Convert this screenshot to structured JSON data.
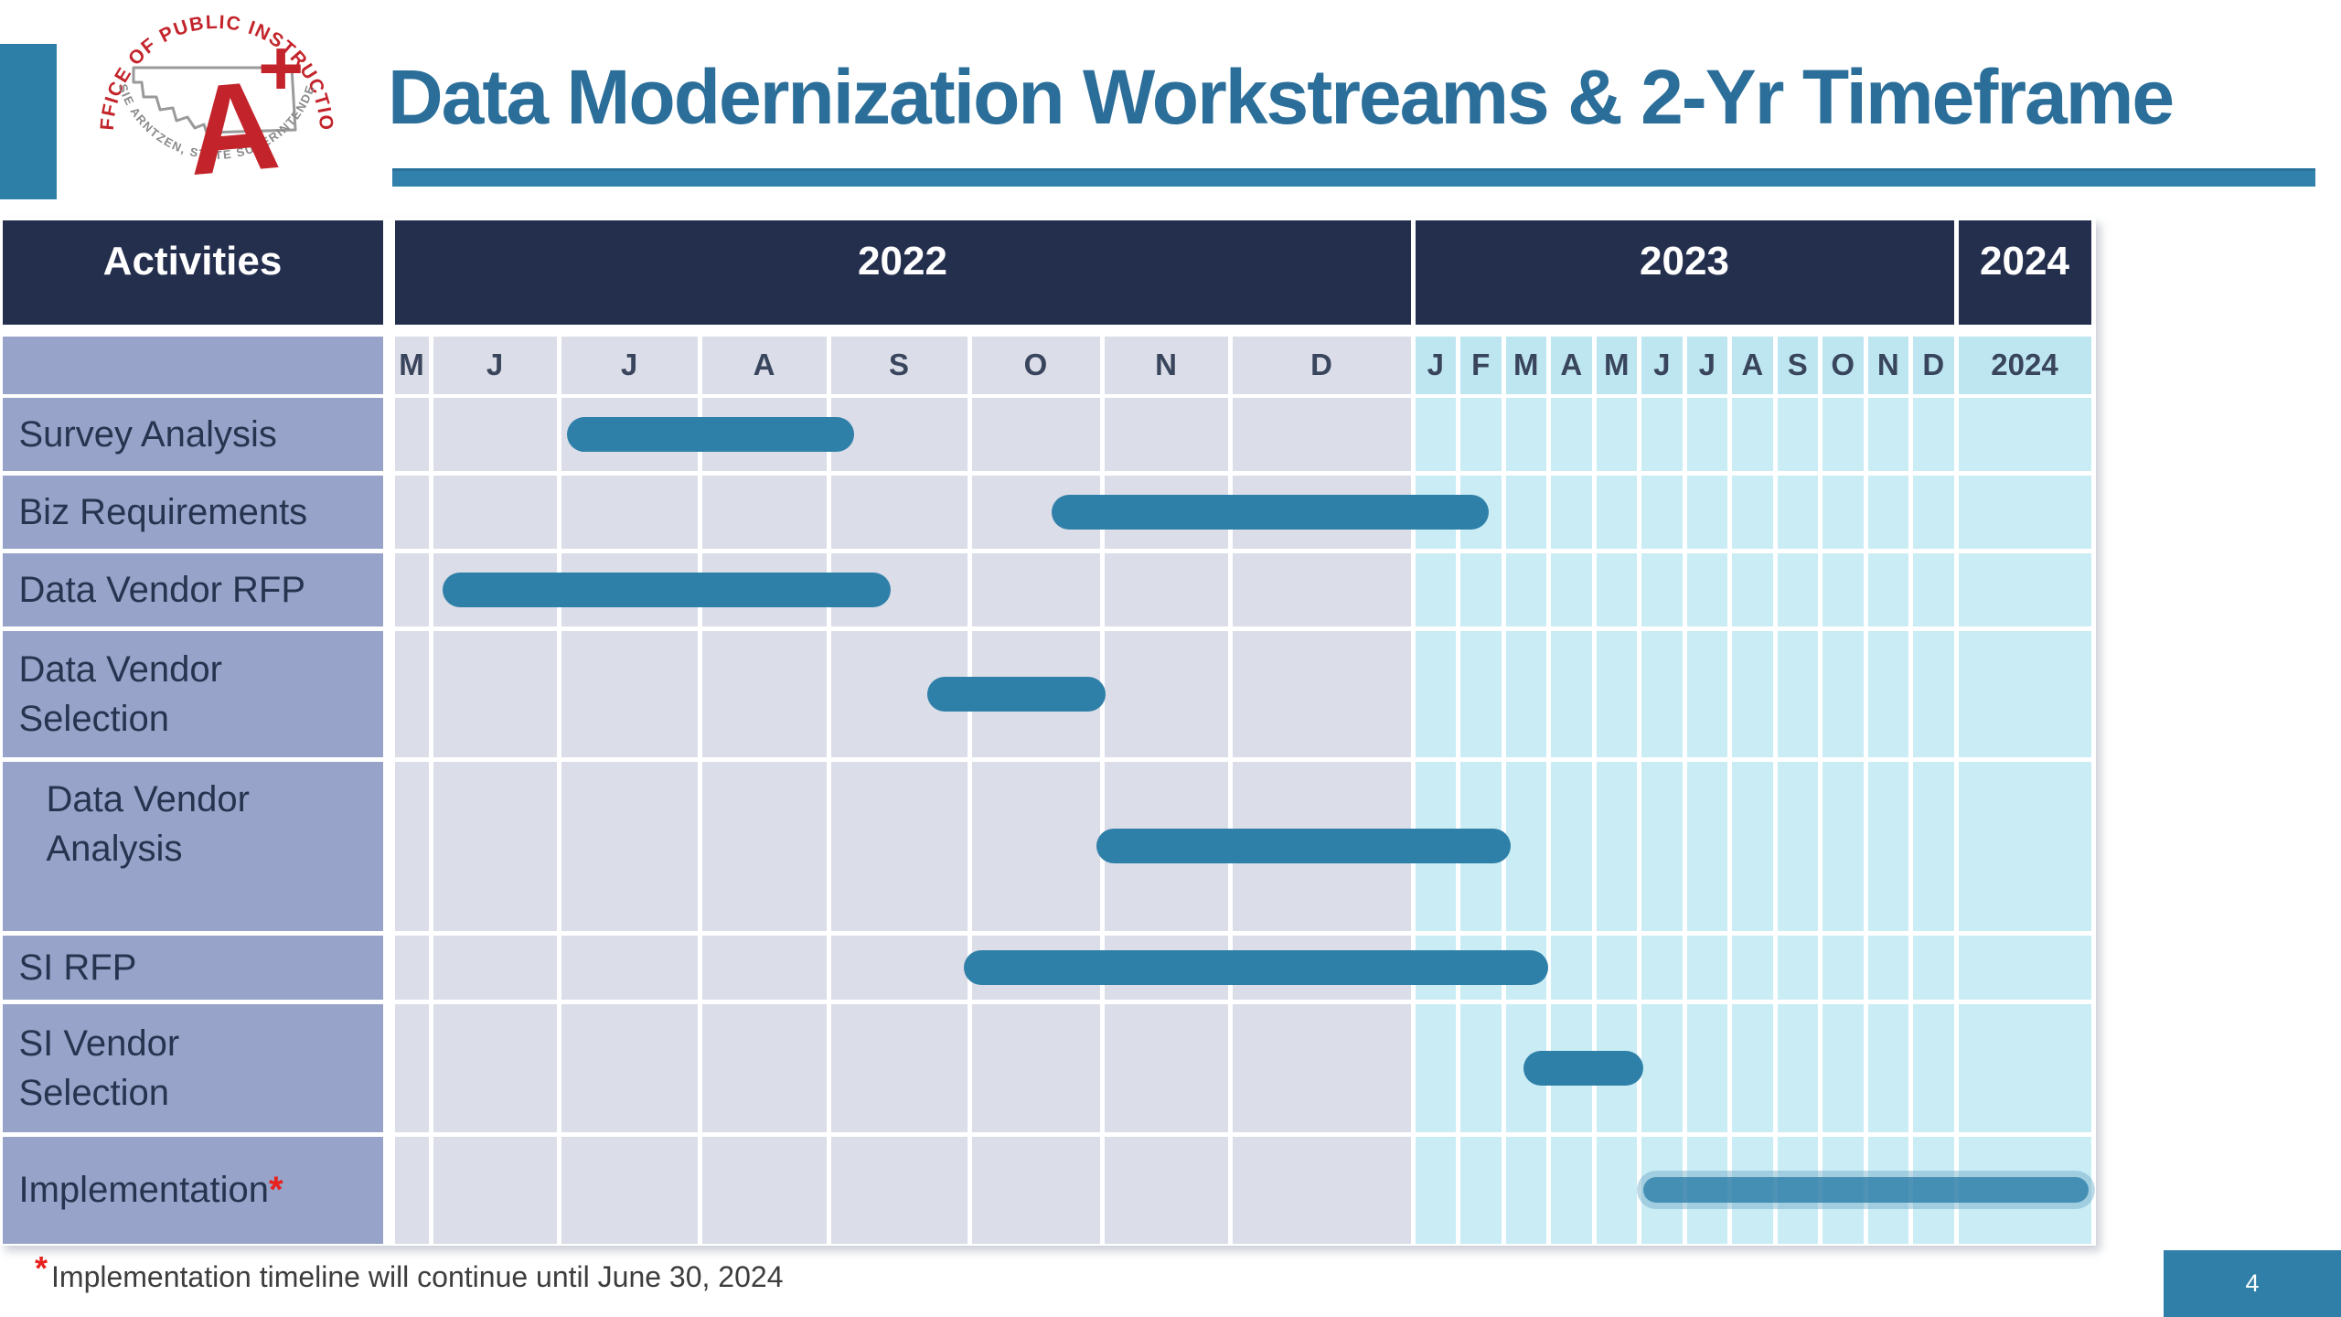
{
  "title": "Data Modernization Workstreams & 2-Yr Timeframe",
  "logo": {
    "arc_top": "OFFICE OF PUBLIC INSTRUCTION",
    "arc_bottom": "ELSIE ARNTZEN, STATE SUPERINTENDENT",
    "monogram_a": "A",
    "monogram_plus": "+"
  },
  "table": {
    "activities_header": "Activities",
    "year_headers": [
      "2022",
      "2023",
      "2024"
    ],
    "months_2022": [
      "M",
      "J",
      "J",
      "A",
      "S",
      "O",
      "N",
      "D"
    ],
    "months_2023": [
      "J",
      "F",
      "M",
      "A",
      "M",
      "J",
      "J",
      "A",
      "S",
      "O",
      "N",
      "D"
    ],
    "col_2024_label": "2024",
    "row_labels": [
      {
        "lines": [
          "Survey Analysis"
        ],
        "indent": false,
        "asterisk": false
      },
      {
        "lines": [
          "Biz Requirements"
        ],
        "indent": false,
        "asterisk": false
      },
      {
        "lines": [
          "Data Vendor RFP"
        ],
        "indent": false,
        "asterisk": false
      },
      {
        "lines": [
          "Data Vendor",
          "Selection"
        ],
        "indent": false,
        "asterisk": false
      },
      {
        "lines": [
          "Data Vendor",
          "Analysis"
        ],
        "indent": true,
        "asterisk": false,
        "align_top": true
      },
      {
        "lines": [
          "SI RFP"
        ],
        "indent": false,
        "asterisk": false
      },
      {
        "lines": [
          "SI Vendor",
          "Selection"
        ],
        "indent": false,
        "asterisk": false
      },
      {
        "lines": [
          "Implementation"
        ],
        "indent": false,
        "asterisk": true
      }
    ]
  },
  "chart_data": {
    "type": "gantt",
    "title": "Data Modernization Workstreams & 2-Yr Timeframe",
    "timeline_note": "month index scale: 0 = May 2022, 1 unit per month through Dec 2023 (index 19); index 20 = 2024 block",
    "years": [
      {
        "label": "2022",
        "months": [
          "M",
          "J",
          "J",
          "A",
          "S",
          "O",
          "N",
          "D"
        ]
      },
      {
        "label": "2023",
        "months": [
          "J",
          "F",
          "M",
          "A",
          "M",
          "J",
          "J",
          "A",
          "S",
          "O",
          "N",
          "D"
        ]
      },
      {
        "label": "2024",
        "months": [
          "2024"
        ]
      }
    ],
    "tasks": [
      {
        "row": 0,
        "activity": "Survey Analysis",
        "start_label": "Jul 2022",
        "end_label": "early Sep 2022",
        "start_idx": 2.06,
        "end_idx": 4.18,
        "style": "normal"
      },
      {
        "row": 1,
        "activity": "Biz Requirements",
        "start_label": "mid-Oct 2022",
        "end_label": "mid-Feb 2023",
        "start_idx": 5.62,
        "end_idx": 9.68,
        "style": "normal"
      },
      {
        "row": 2,
        "activity": "Data Vendor RFP",
        "start_label": "Jun 2022",
        "end_label": "mid-Sep 2022",
        "start_idx": 1.09,
        "end_idx": 4.44,
        "style": "normal"
      },
      {
        "row": 3,
        "activity": "Data Vendor Selection",
        "start_label": "late Sep 2022",
        "end_label": "Oct 2022",
        "start_idx": 4.7,
        "end_idx": 6.03,
        "style": "normal"
      },
      {
        "row": 4,
        "activity": "Data Vendor Analysis",
        "start_label": "Nov 2022",
        "end_label": "mid-Feb 2023",
        "start_idx": 5.96,
        "end_idx": 10.16,
        "style": "normal"
      },
      {
        "row": 5,
        "activity": "SI RFP",
        "start_label": "Oct 2022",
        "end_label": "Feb 2023",
        "start_idx": 4.96,
        "end_idx": 11.0,
        "style": "normal"
      },
      {
        "row": 6,
        "activity": "SI Vendor Selection",
        "start_label": "mid-Mar 2023",
        "end_label": "May 2023",
        "start_idx": 10.45,
        "end_idx": 13.1,
        "style": "normal"
      },
      {
        "row": 7,
        "activity": "Implementation",
        "start_label": "Jun 2023",
        "end_label": "2024 (continues until June 30, 2024)",
        "start_idx": 13.1,
        "end_idx": 20.97,
        "style": "implementation"
      }
    ]
  },
  "footnote": {
    "marker": "*",
    "text": "Implementation timeline will continue until June 30, 2024"
  },
  "page_number": "4",
  "colors": {
    "header_navy": "#242F4E",
    "label_lavender": "#97A3C9",
    "cell_gray_2022": "#DBDDE8",
    "month_cyan_2023": "#BEE6F1",
    "cell_cyan_2023": "#C9ECF5",
    "bar_teal": "#2F80A9",
    "implementation_bar": "rgba(47,127,168,0.85)",
    "title_blue": "#2A6E99",
    "underline_teal": "#3181AC",
    "accent_teal": "#2E7FA8",
    "logo_red": "#C3242B",
    "footnote_red": "#E8211D",
    "page_box_teal": "#2F7FA8"
  }
}
